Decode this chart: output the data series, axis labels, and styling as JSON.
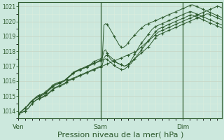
{
  "bg_color": "#cce8dd",
  "grid_color_major": "#c8d8c8",
  "grid_color_minor": "#ddeedd",
  "line_color": "#2d5a2d",
  "xlabel": "Pression niveau de la mer( hPa )",
  "xlabel_fontsize": 8,
  "ylim": [
    1013.5,
    1021.3
  ],
  "yticks": [
    1014,
    1015,
    1016,
    1017,
    1018,
    1019,
    1020,
    1021
  ],
  "xtick_labels": [
    "Ven",
    "Sam",
    "Dim"
  ],
  "xtick_positions": [
    0,
    48,
    96
  ],
  "total_points": 120,
  "vlines": [
    0,
    48,
    96
  ],
  "series": [
    [
      1013.8,
      1013.85,
      1013.9,
      1013.95,
      1014.0,
      1014.1,
      1014.2,
      1014.35,
      1014.5,
      1014.6,
      1014.7,
      1014.8,
      1014.85,
      1014.9,
      1014.95,
      1015.0,
      1015.05,
      1015.1,
      1015.2,
      1015.3,
      1015.4,
      1015.5,
      1015.55,
      1015.6,
      1015.65,
      1015.7,
      1015.75,
      1015.8,
      1015.9,
      1016.0,
      1016.05,
      1016.1,
      1016.15,
      1016.2,
      1016.25,
      1016.3,
      1016.35,
      1016.4,
      1016.45,
      1016.5,
      1016.55,
      1016.6,
      1016.65,
      1016.7,
      1016.75,
      1016.8,
      1016.85,
      1016.9,
      1016.95,
      1017.0,
      1017.05,
      1017.1,
      1017.15,
      1017.2,
      1017.25,
      1017.3,
      1017.35,
      1017.4,
      1017.45,
      1017.5,
      1017.55,
      1017.6,
      1017.65,
      1017.7,
      1017.75,
      1017.8,
      1017.85,
      1017.9,
      1017.95,
      1018.0,
      1018.1,
      1018.2,
      1018.3,
      1018.4,
      1018.5,
      1018.6,
      1018.7,
      1018.8,
      1018.9,
      1019.0,
      1019.1,
      1019.2,
      1019.3,
      1019.35,
      1019.4,
      1019.45,
      1019.5,
      1019.55,
      1019.6,
      1019.65,
      1019.7,
      1019.75,
      1019.8,
      1019.85,
      1019.9,
      1019.95,
      1020.0,
      1020.05,
      1020.1,
      1020.15,
      1020.2,
      1020.25,
      1020.3,
      1020.35,
      1020.4,
      1020.45,
      1020.5,
      1020.55,
      1020.6,
      1020.65,
      1020.7,
      1020.75,
      1020.8,
      1020.85,
      1020.9,
      1020.95,
      1021.0,
      1021.0,
      1020.95,
      1020.9
    ],
    [
      1013.8,
      1013.85,
      1013.9,
      1013.95,
      1014.0,
      1014.1,
      1014.2,
      1014.35,
      1014.5,
      1014.6,
      1014.7,
      1014.75,
      1014.8,
      1014.85,
      1014.9,
      1014.95,
      1015.05,
      1015.15,
      1015.25,
      1015.35,
      1015.45,
      1015.55,
      1015.6,
      1015.65,
      1015.7,
      1015.75,
      1015.8,
      1015.85,
      1015.95,
      1016.05,
      1016.1,
      1016.15,
      1016.2,
      1016.25,
      1016.3,
      1016.35,
      1016.4,
      1016.45,
      1016.5,
      1016.55,
      1016.6,
      1016.65,
      1016.7,
      1016.75,
      1016.8,
      1016.85,
      1016.9,
      1016.95,
      1017.0,
      1017.05,
      1017.55,
      1017.7,
      1017.75,
      1017.7,
      1017.6,
      1017.5,
      1017.4,
      1017.3,
      1017.2,
      1017.15,
      1017.1,
      1017.05,
      1017.0,
      1017.05,
      1017.1,
      1017.2,
      1017.3,
      1017.4,
      1017.5,
      1017.6,
      1017.7,
      1017.8,
      1017.9,
      1018.0,
      1018.1,
      1018.2,
      1018.3,
      1018.45,
      1018.6,
      1018.75,
      1018.9,
      1019.0,
      1019.1,
      1019.15,
      1019.2,
      1019.25,
      1019.3,
      1019.35,
      1019.4,
      1019.45,
      1019.5,
      1019.55,
      1019.6,
      1019.65,
      1019.7,
      1019.75,
      1019.8,
      1019.85,
      1019.9,
      1019.95,
      1020.0,
      1020.05,
      1020.1,
      1020.15,
      1020.2,
      1020.25,
      1020.3,
      1020.35,
      1020.4,
      1020.45,
      1020.5,
      1020.5,
      1020.45,
      1020.4,
      1020.35,
      1020.3,
      1020.25,
      1020.2,
      1020.15,
      1020.1
    ],
    [
      1013.8,
      1013.9,
      1014.0,
      1014.1,
      1014.2,
      1014.3,
      1014.4,
      1014.55,
      1014.65,
      1014.75,
      1014.85,
      1014.9,
      1014.95,
      1015.0,
      1015.05,
      1015.1,
      1015.2,
      1015.3,
      1015.4,
      1015.5,
      1015.6,
      1015.7,
      1015.75,
      1015.8,
      1015.85,
      1015.9,
      1015.95,
      1016.0,
      1016.1,
      1016.2,
      1016.3,
      1016.4,
      1016.5,
      1016.6,
      1016.65,
      1016.7,
      1016.75,
      1016.8,
      1016.85,
      1016.9,
      1016.95,
      1017.0,
      1017.1,
      1017.2,
      1017.3,
      1017.35,
      1017.4,
      1017.45,
      1017.5,
      1017.55,
      1018.0,
      1018.1,
      1017.85,
      1017.6,
      1017.45,
      1017.35,
      1017.3,
      1017.25,
      1017.2,
      1017.15,
      1017.1,
      1017.05,
      1017.0,
      1017.05,
      1017.1,
      1017.2,
      1017.4,
      1017.6,
      1017.8,
      1018.0,
      1018.2,
      1018.4,
      1018.55,
      1018.7,
      1018.85,
      1019.0,
      1019.15,
      1019.3,
      1019.45,
      1019.55,
      1019.65,
      1019.7,
      1019.75,
      1019.8,
      1019.85,
      1019.9,
      1019.95,
      1020.0,
      1020.05,
      1020.1,
      1020.15,
      1020.2,
      1020.25,
      1020.3,
      1020.35,
      1020.4,
      1020.45,
      1020.5,
      1020.55,
      1020.6,
      1020.65,
      1020.65,
      1020.6,
      1020.55,
      1020.5,
      1020.45,
      1020.4,
      1020.35,
      1020.3,
      1020.25,
      1020.2,
      1020.15,
      1020.1,
      1020.05,
      1020.0,
      1019.95,
      1019.9,
      1019.85,
      1019.8,
      1019.75
    ],
    [
      1013.8,
      1013.9,
      1014.0,
      1014.1,
      1014.2,
      1014.3,
      1014.45,
      1014.6,
      1014.7,
      1014.8,
      1014.9,
      1015.0,
      1015.05,
      1015.1,
      1015.15,
      1015.2,
      1015.3,
      1015.4,
      1015.5,
      1015.6,
      1015.7,
      1015.8,
      1015.85,
      1015.9,
      1015.92,
      1015.95,
      1016.0,
      1016.05,
      1016.15,
      1016.25,
      1016.35,
      1016.45,
      1016.55,
      1016.65,
      1016.7,
      1016.75,
      1016.8,
      1016.85,
      1016.9,
      1016.95,
      1017.0,
      1017.05,
      1017.1,
      1017.15,
      1017.2,
      1017.25,
      1017.3,
      1017.35,
      1017.4,
      1017.45,
      1019.75,
      1019.85,
      1019.8,
      1019.6,
      1019.4,
      1019.2,
      1019.0,
      1018.8,
      1018.6,
      1018.4,
      1018.3,
      1018.25,
      1018.3,
      1018.4,
      1018.55,
      1018.7,
      1018.85,
      1018.95,
      1019.1,
      1019.2,
      1019.35,
      1019.45,
      1019.55,
      1019.65,
      1019.75,
      1019.8,
      1019.85,
      1019.9,
      1019.95,
      1020.0,
      1020.05,
      1020.1,
      1020.15,
      1020.2,
      1020.25,
      1020.3,
      1020.35,
      1020.4,
      1020.45,
      1020.5,
      1020.55,
      1020.6,
      1020.65,
      1020.7,
      1020.75,
      1020.8,
      1020.85,
      1020.9,
      1020.95,
      1021.0,
      1021.05,
      1021.1,
      1021.1,
      1021.05,
      1021.0,
      1020.95,
      1020.9,
      1020.85,
      1020.8,
      1020.75,
      1020.7,
      1020.65,
      1020.6,
      1020.55,
      1020.5,
      1020.45,
      1020.4,
      1020.35,
      1020.3,
      1020.25
    ],
    [
      1013.8,
      1013.9,
      1014.0,
      1014.1,
      1014.2,
      1014.3,
      1014.45,
      1014.55,
      1014.65,
      1014.75,
      1014.85,
      1014.95,
      1015.0,
      1015.05,
      1015.1,
      1015.15,
      1015.25,
      1015.35,
      1015.45,
      1015.55,
      1015.65,
      1015.75,
      1015.8,
      1015.85,
      1015.9,
      1015.95,
      1016.0,
      1016.05,
      1016.15,
      1016.25,
      1016.35,
      1016.45,
      1016.55,
      1016.6,
      1016.65,
      1016.7,
      1016.75,
      1016.8,
      1016.85,
      1016.9,
      1016.95,
      1017.0,
      1017.05,
      1017.1,
      1017.15,
      1017.2,
      1017.25,
      1017.3,
      1017.35,
      1017.4,
      1017.45,
      1017.5,
      1017.45,
      1017.35,
      1017.25,
      1017.15,
      1017.05,
      1016.95,
      1016.9,
      1016.85,
      1016.8,
      1016.75,
      1016.8,
      1016.9,
      1017.0,
      1017.1,
      1017.2,
      1017.35,
      1017.5,
      1017.65,
      1017.8,
      1017.95,
      1018.1,
      1018.25,
      1018.4,
      1018.55,
      1018.7,
      1018.85,
      1019.0,
      1019.15,
      1019.3,
      1019.4,
      1019.5,
      1019.55,
      1019.6,
      1019.65,
      1019.7,
      1019.75,
      1019.8,
      1019.85,
      1019.9,
      1019.95,
      1020.0,
      1020.05,
      1020.1,
      1020.15,
      1020.2,
      1020.25,
      1020.3,
      1020.35,
      1020.4,
      1020.45,
      1020.4,
      1020.35,
      1020.3,
      1020.25,
      1020.2,
      1020.15,
      1020.1,
      1020.05,
      1020.0,
      1019.95,
      1019.9,
      1019.85,
      1019.8,
      1019.75,
      1019.7,
      1019.65,
      1019.6,
      1019.55
    ]
  ]
}
